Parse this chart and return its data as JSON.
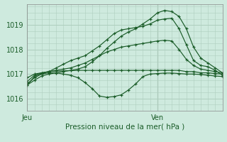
{
  "title": "",
  "xlabel": "Pression niveau de la mer( hPa )",
  "ylabel": "",
  "bg_color": "#ceeade",
  "grid_color": "#aecebe",
  "line_color": "#1a5c28",
  "marker_color": "#1a5c28",
  "ylim": [
    1015.5,
    1019.85
  ],
  "xlim": [
    0,
    27
  ],
  "yticks": [
    1016,
    1017,
    1018,
    1019
  ],
  "xtick_labels": [
    "Jeu",
    "Ven"
  ],
  "xtick_positions": [
    0,
    18
  ],
  "vline_x": 18,
  "series": [
    [
      1016.55,
      1016.75,
      1016.92,
      1017.0,
      1017.05,
      1017.1,
      1017.15,
      1017.2,
      1017.3,
      1017.5,
      1017.75,
      1018.05,
      1018.3,
      1018.55,
      1018.72,
      1018.85,
      1019.05,
      1019.25,
      1019.5,
      1019.6,
      1019.55,
      1019.35,
      1018.85,
      1018.1,
      1017.65,
      1017.45,
      1017.25,
      1017.05
    ],
    [
      1016.7,
      1016.95,
      1017.05,
      1017.1,
      1017.15,
      1017.2,
      1017.25,
      1017.35,
      1017.45,
      1017.6,
      1017.75,
      1017.9,
      1018.0,
      1018.1,
      1018.15,
      1018.2,
      1018.25,
      1018.3,
      1018.35,
      1018.38,
      1018.35,
      1018.0,
      1017.6,
      1017.35,
      1017.2,
      1017.15,
      1017.1,
      1017.05
    ],
    [
      1016.85,
      1017.0,
      1017.05,
      1017.1,
      1017.12,
      1017.13,
      1017.14,
      1017.15,
      1017.15,
      1017.15,
      1017.15,
      1017.15,
      1017.15,
      1017.15,
      1017.15,
      1017.15,
      1017.15,
      1017.15,
      1017.15,
      1017.15,
      1017.15,
      1017.15,
      1017.1,
      1017.1,
      1017.05,
      1017.05,
      1017.02,
      1017.0
    ],
    [
      1016.6,
      1016.85,
      1017.0,
      1017.05,
      1017.05,
      1017.0,
      1016.95,
      1016.85,
      1016.65,
      1016.4,
      1016.1,
      1016.05,
      1016.08,
      1016.15,
      1016.35,
      1016.6,
      1016.9,
      1017.0,
      1017.02,
      1017.04,
      1017.04,
      1017.02,
      1017.0,
      1017.0,
      1016.98,
      1016.95,
      1016.92,
      1016.9
    ],
    [
      1016.55,
      1016.9,
      1017.02,
      1017.1,
      1017.25,
      1017.4,
      1017.55,
      1017.65,
      1017.75,
      1017.95,
      1018.15,
      1018.4,
      1018.65,
      1018.8,
      1018.85,
      1018.9,
      1018.95,
      1019.05,
      1019.2,
      1019.25,
      1019.28,
      1018.85,
      1018.2,
      1017.55,
      1017.35,
      1017.3,
      1017.15,
      1016.95
    ]
  ],
  "figsize": [
    3.2,
    2.0
  ],
  "dpi": 100
}
